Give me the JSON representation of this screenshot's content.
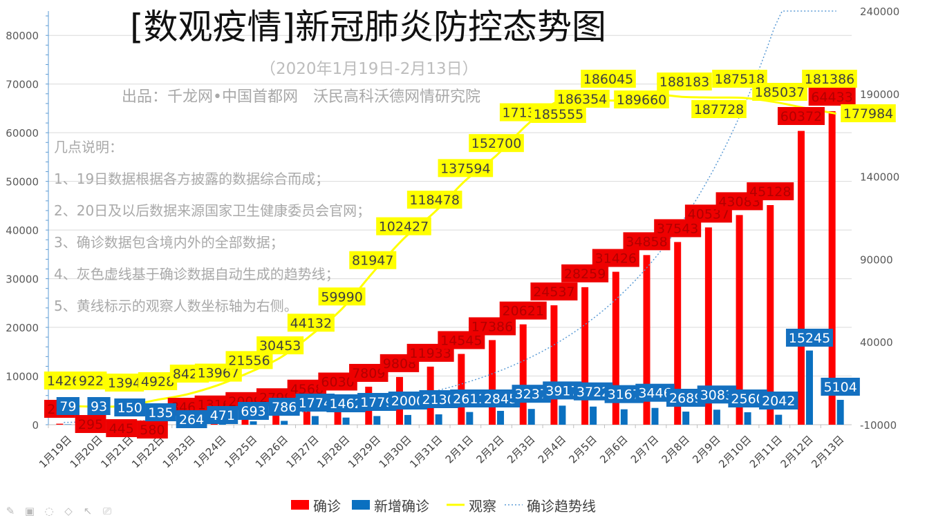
{
  "title": "[数观疫情]新冠肺炎防控态势图",
  "subtitle": "（2020年1月19日-2月13日）",
  "credit": "出品：千龙网•中国首都网　沃民高科沃德网情研究院",
  "notes": {
    "heading": "几点说明：",
    "items": [
      "1、19日数据根据各方披露的数据综合而成；",
      "2、20日及以后数据来源国家卫生健康委员会官网；",
      "3、确诊数据包含境内外的全部数据；",
      "4、灰色虚线基于确诊数据自动生成的趋势线；",
      "5、黄线标示的观察人数坐标轴为右侧。"
    ]
  },
  "colors": {
    "confirmed": "#ff0000",
    "new_confirmed": "#0a70c0",
    "observed": "#ffff00",
    "trend": "#5b9bd5"
  },
  "toolbar_icons": [
    "pen-icon",
    "image-icon",
    "lasso-icon",
    "eraser-icon",
    "pointer-icon",
    "camera-icon"
  ],
  "chart_data": {
    "type": "bar",
    "categories": [
      "1月19日",
      "1月20日",
      "1月21日",
      "1月22日",
      "1月23日",
      "1月24日",
      "1月25日",
      "1月26日",
      "1月27日",
      "1月28日",
      "1月29日",
      "1月30日",
      "1月31日",
      "2月1日",
      "2月2日",
      "2月3日",
      "2月4日",
      "2月5日",
      "2月6日",
      "2月7日",
      "2月8日",
      "2月9日",
      "2月10日",
      "2月11日",
      "2月12日",
      "2月13日"
    ],
    "series": [
      {
        "name": "确诊",
        "kind": "bar",
        "axis": "left",
        "values": [
          204,
          295,
          445,
          580,
          846,
          1316,
          2009,
          2799,
          4568,
          6030,
          7809,
          9808,
          11933,
          14545,
          17386,
          20621,
          24537,
          28259,
          31426,
          34858,
          37543,
          40537,
          43083,
          45128,
          60372,
          64433
        ]
      },
      {
        "name": "新增确诊",
        "kind": "bar",
        "axis": "left",
        "values": [
          79,
          93,
          150,
          135,
          264,
          471,
          693,
          786,
          1774,
          1462,
          1779,
          2000,
          2130,
          2611,
          2845,
          3237,
          3917,
          3722,
          3167,
          3446,
          2689,
          3083,
          2560,
          2042,
          15245,
          5104
        ]
      },
      {
        "name": "观察",
        "kind": "line",
        "axis": "right",
        "values": [
          1426,
          922,
          1394,
          4928,
          8420,
          13967,
          21556,
          30453,
          44132,
          59990,
          81947,
          102427,
          118478,
          137594,
          152700,
          171329,
          185555,
          186354,
          186045,
          189660,
          188183,
          187728,
          187518,
          185037,
          181386,
          177984
        ]
      },
      {
        "name": "确诊趋势线",
        "kind": "trendline",
        "axis": "left"
      }
    ],
    "y_left": {
      "min": 0,
      "max": 85000,
      "ticks": [
        0,
        10000,
        20000,
        30000,
        40000,
        50000,
        60000,
        70000,
        80000
      ]
    },
    "y_right": {
      "min": -10000,
      "max": 240000,
      "ticks": [
        -10000,
        40000,
        90000,
        140000,
        190000,
        240000
      ]
    },
    "grid": true,
    "legend": "bottom"
  }
}
